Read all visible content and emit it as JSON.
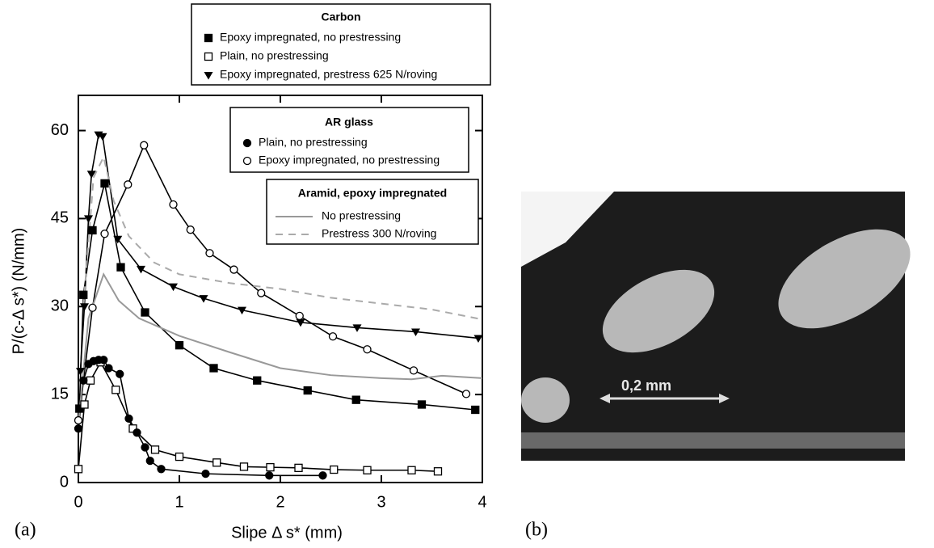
{
  "chart_data": {
    "type": "line",
    "xlabel": "Slipe Δ s* (mm)",
    "ylabel": "P/(c-Δ s*) (N/mm)",
    "xlim": [
      0,
      4
    ],
    "ylim": [
      0,
      66
    ],
    "xticks": [
      0,
      1,
      2,
      3,
      4
    ],
    "yticks": [
      0,
      15,
      30,
      45,
      60
    ],
    "groups": [
      {
        "title": "Carbon",
        "series": [
          {
            "name": "Epoxy impregnated, no prestressing",
            "color": "#000000",
            "marker": "square-filled",
            "dash": false,
            "x": [
              0.01,
              0.05,
              0.14,
              0.26,
              0.42,
              0.66,
              1.0,
              1.34,
              1.77,
              2.27,
              2.75,
              3.4,
              3.93
            ],
            "values": [
              12.6,
              32,
              43,
              51,
              36.7,
              29,
              23.4,
              19.5,
              17.4,
              15.7,
              14.1,
              13.3,
              12.4
            ]
          },
          {
            "name": "Plain, no prestressing",
            "color": "#000000",
            "marker": "square-open",
            "dash": false,
            "x": [
              0,
              0.06,
              0.12,
              0.22,
              0.37,
              0.54,
              0.76,
              1.0,
              1.37,
              1.64,
              1.9,
              2.18,
              2.53,
              2.86,
              3.3,
              3.56
            ],
            "values": [
              2.3,
              13.3,
              17.4,
              20.5,
              15.8,
              9.2,
              5.6,
              4.4,
              3.4,
              2.7,
              2.6,
              2.5,
              2.2,
              2.1,
              2.1,
              1.9
            ]
          },
          {
            "name": "Epoxy impregnated, prestress 625 N/roving",
            "color": "#000000",
            "marker": "triangle-down",
            "dash": false,
            "x": [
              0.02,
              0.06,
              0.1,
              0.13,
              0.2,
              0.24,
              0.39,
              0.62,
              0.94,
              1.24,
              1.62,
              2.2,
              2.76,
              3.34,
              3.96
            ],
            "values": [
              19,
              30,
              45,
              52.6,
              59.3,
              59,
              41.5,
              36.4,
              33.4,
              31.4,
              29.4,
              27.3,
              26.4,
              25.7,
              24.6
            ]
          }
        ]
      },
      {
        "title": "AR glass",
        "series": [
          {
            "name": "Plain, no prestressing",
            "color": "#000000",
            "marker": "circle-filled",
            "dash": false,
            "x": [
              0,
              0.05,
              0.1,
              0.15,
              0.2,
              0.25,
              0.3,
              0.41,
              0.5,
              0.58,
              0.66,
              0.71,
              0.82,
              1.26,
              1.89,
              2.42
            ],
            "values": [
              9.2,
              17.4,
              20.2,
              20.7,
              20.9,
              20.9,
              19.5,
              18.5,
              10.9,
              8.5,
              6.0,
              3.7,
              2.3,
              1.5,
              1.2,
              1.2
            ]
          },
          {
            "name": "Epoxy impregnated, no prestressing",
            "color": "#000000",
            "marker": "circle-open",
            "dash": false,
            "x": [
              0,
              0.14,
              0.26,
              0.49,
              0.65,
              0.94,
              1.11,
              1.3,
              1.54,
              1.81,
              2.19,
              2.52,
              2.86,
              3.32,
              3.84
            ],
            "values": [
              10.6,
              29.8,
              42.4,
              50.8,
              57.5,
              47.4,
              43.1,
              39.1,
              36.3,
              32.3,
              28.4,
              24.9,
              22.7,
              19.1,
              15.1
            ]
          }
        ]
      },
      {
        "title": "Aramid, epoxy impregnated",
        "series": [
          {
            "name": "No prestressing",
            "color": "#999999",
            "marker": "none",
            "dash": false,
            "x": [
              0,
              0.1,
              0.25,
              0.4,
              0.6,
              1.0,
              1.5,
              2.0,
              2.5,
              3.0,
              3.3,
              3.6,
              4.0
            ],
            "values": [
              10,
              28,
              35.5,
              31,
              28,
              25,
              22.2,
              19.5,
              18.3,
              17.8,
              17.6,
              18.2,
              17.8
            ]
          },
          {
            "name": "Prestress 300 N/roving",
            "color": "#aaaaaa",
            "marker": "none",
            "dash": true,
            "x": [
              0.05,
              0.15,
              0.25,
              0.35,
              0.5,
              0.75,
              1.0,
              1.5,
              2.0,
              2.5,
              3.0,
              3.5,
              4.0
            ],
            "values": [
              30,
              52,
              55.5,
              48,
              42,
              37.5,
              35.5,
              34,
              33,
              31.5,
              30.5,
              29.5,
              27.8
            ]
          }
        ]
      }
    ]
  },
  "micrograph": {
    "scale_label": "0,2 mm"
  },
  "panel_labels": [
    "(a)",
    "(b)"
  ]
}
